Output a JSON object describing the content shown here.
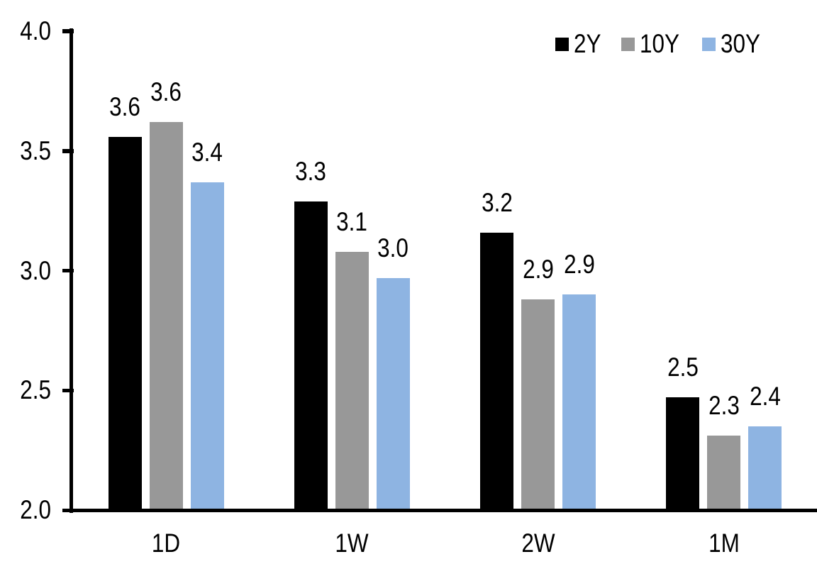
{
  "chart_data": {
    "type": "bar",
    "title": "",
    "xlabel": "",
    "ylabel": "",
    "categories": [
      "1D",
      "1W",
      "2W",
      "1M"
    ],
    "series": [
      {
        "name": "2Y",
        "color": "#000000",
        "values": [
          3.56,
          3.29,
          3.16,
          2.47
        ],
        "labels": [
          "3.6",
          "3.3",
          "3.2",
          "2.5"
        ]
      },
      {
        "name": "10Y",
        "color": "#989898",
        "values": [
          3.62,
          3.08,
          2.88,
          2.31
        ],
        "labels": [
          "3.6",
          "3.1",
          "2.9",
          "2.3"
        ]
      },
      {
        "name": "30Y",
        "color": "#8EB4E2",
        "values": [
          3.37,
          2.97,
          2.9,
          2.35
        ],
        "labels": [
          "3.4",
          "3.0",
          "2.9",
          "2.4"
        ]
      }
    ],
    "ylim": [
      2.0,
      4.0
    ],
    "ytick_labels": [
      "4.0",
      "3.5",
      "3.0",
      "2.5",
      "2.0"
    ],
    "ytick_values": [
      4.0,
      3.5,
      3.0,
      2.5,
      2.0
    ],
    "grid": false,
    "legend_position": "top-right",
    "axis_color": "#000000",
    "text_color": "#000000",
    "background": "#ffffff"
  }
}
